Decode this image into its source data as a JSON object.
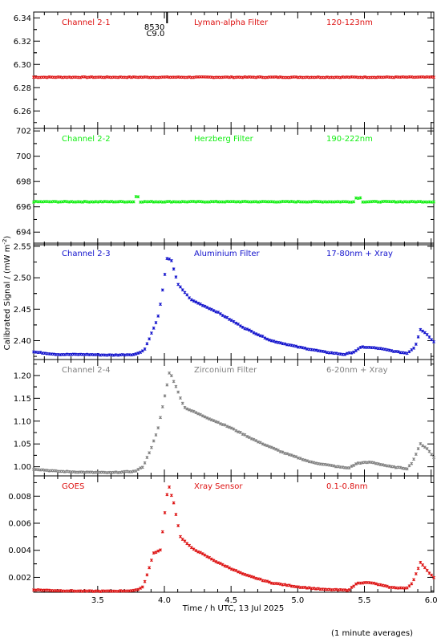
{
  "xlabel": "Time / h UTC, 13 Jul 2025",
  "ylabel": "Calibrated Signal / (mW m",
  "ylabel_sup": "-2",
  "ylabel_close": ")",
  "footnote": "(1 minute averages)",
  "flare_marker": {
    "x": 4.02,
    "label_top": "8530",
    "label_bottom": "C9.0"
  },
  "chart_data": [
    {
      "type": "scatter",
      "channel": "Channel 2-1",
      "filter": "Lyman-alpha Filter",
      "band": "120-123nm",
      "color": "#dd1111",
      "xlim": [
        3.02,
        6.02
      ],
      "ylim": [
        6.245,
        6.345
      ],
      "yticks": [
        "6.26",
        "6.28",
        "6.30",
        "6.32",
        "6.34"
      ],
      "profile": {
        "kind": "flat",
        "level": 6.289
      }
    },
    {
      "type": "scatter",
      "channel": "Channel 2-2",
      "filter": "Herzberg Filter",
      "band": "190-222nm",
      "color": "#11ee11",
      "xlim": [
        3.02,
        6.02
      ],
      "ylim": [
        693,
        702.2
      ],
      "yticks": [
        "694",
        "696",
        "698",
        "700",
        "702"
      ],
      "profile": {
        "kind": "flat",
        "level": 696.4,
        "bumps": [
          [
            3.8,
            696.8
          ],
          [
            5.45,
            696.7
          ]
        ]
      }
    },
    {
      "type": "scatter",
      "channel": "Channel 2-3",
      "filter": "Aluminium Filter",
      "band": "17-80nm + Xray",
      "color": "#1111cc",
      "xlim": [
        3.02,
        6.02
      ],
      "ylim": [
        2.37,
        2.555
      ],
      "yticks": [
        "2.40",
        "2.45",
        "2.50",
        "2.55"
      ],
      "profile": {
        "kind": "flare",
        "points": [
          [
            3.02,
            2.382
          ],
          [
            3.2,
            2.378
          ],
          [
            3.4,
            2.378
          ],
          [
            3.6,
            2.377
          ],
          [
            3.78,
            2.378
          ],
          [
            3.85,
            2.385
          ],
          [
            3.9,
            2.41
          ],
          [
            3.95,
            2.435
          ],
          [
            3.98,
            2.47
          ],
          [
            4.02,
            2.53
          ],
          [
            4.05,
            2.53
          ],
          [
            4.1,
            2.49
          ],
          [
            4.2,
            2.465
          ],
          [
            4.4,
            2.445
          ],
          [
            4.6,
            2.42
          ],
          [
            4.8,
            2.4
          ],
          [
            5.0,
            2.39
          ],
          [
            5.2,
            2.382
          ],
          [
            5.35,
            2.378
          ],
          [
            5.42,
            2.382
          ],
          [
            5.48,
            2.39
          ],
          [
            5.6,
            2.388
          ],
          [
            5.75,
            2.382
          ],
          [
            5.82,
            2.38
          ],
          [
            5.88,
            2.39
          ],
          [
            5.92,
            2.418
          ],
          [
            5.96,
            2.412
          ],
          [
            6.02,
            2.398
          ]
        ]
      }
    },
    {
      "type": "scatter",
      "channel": "Channel 2-4",
      "filter": "Zirconium Filter",
      "band": "6-20nm + Xray",
      "color": "#808080",
      "xlim": [
        3.02,
        6.02
      ],
      "ylim": [
        0.98,
        1.235
      ],
      "yticks": [
        "1.00",
        "1.05",
        "1.10",
        "1.15",
        "1.20"
      ],
      "profile": {
        "kind": "flare",
        "points": [
          [
            3.02,
            0.995
          ],
          [
            3.2,
            0.99
          ],
          [
            3.4,
            0.988
          ],
          [
            3.6,
            0.987
          ],
          [
            3.78,
            0.99
          ],
          [
            3.84,
            1.0
          ],
          [
            3.9,
            1.04
          ],
          [
            3.95,
            1.08
          ],
          [
            4.0,
            1.15
          ],
          [
            4.04,
            1.21
          ],
          [
            4.08,
            1.18
          ],
          [
            4.15,
            1.13
          ],
          [
            4.3,
            1.11
          ],
          [
            4.5,
            1.085
          ],
          [
            4.7,
            1.055
          ],
          [
            4.9,
            1.03
          ],
          [
            5.1,
            1.01
          ],
          [
            5.3,
            1.0
          ],
          [
            5.38,
            0.997
          ],
          [
            5.45,
            1.008
          ],
          [
            5.55,
            1.01
          ],
          [
            5.7,
            1.0
          ],
          [
            5.82,
            0.996
          ],
          [
            5.86,
            1.01
          ],
          [
            5.92,
            1.05
          ],
          [
            5.97,
            1.04
          ],
          [
            6.02,
            1.02
          ]
        ]
      }
    },
    {
      "type": "scatter",
      "channel": "GOES",
      "filter": "Xray Sensor",
      "band": "0.1-0.8nm",
      "color": "#dd1111",
      "xlim": [
        3.02,
        6.02
      ],
      "ylim": [
        0.0009,
        0.0095
      ],
      "yticks": [
        "0.002",
        "0.004",
        "0.006",
        "0.008"
      ],
      "xticks": [
        "3.5",
        "4.0",
        "4.5",
        "5.0",
        "5.5",
        "6.0"
      ],
      "profile": {
        "kind": "flare",
        "points": [
          [
            3.02,
            0.00108
          ],
          [
            3.2,
            0.00102
          ],
          [
            3.4,
            0.00098
          ],
          [
            3.6,
            0.00098
          ],
          [
            3.78,
            0.00102
          ],
          [
            3.84,
            0.0013
          ],
          [
            3.88,
            0.0025
          ],
          [
            3.92,
            0.0038
          ],
          [
            3.97,
            0.004
          ],
          [
            4.0,
            0.0065
          ],
          [
            4.03,
            0.0089
          ],
          [
            4.07,
            0.0075
          ],
          [
            4.12,
            0.005
          ],
          [
            4.2,
            0.0042
          ],
          [
            4.4,
            0.0031
          ],
          [
            4.6,
            0.0022
          ],
          [
            4.8,
            0.0016
          ],
          [
            5.0,
            0.0013
          ],
          [
            5.2,
            0.0011
          ],
          [
            5.38,
            0.00105
          ],
          [
            5.45,
            0.0016
          ],
          [
            5.55,
            0.0016
          ],
          [
            5.7,
            0.00125
          ],
          [
            5.82,
            0.0012
          ],
          [
            5.86,
            0.0016
          ],
          [
            5.92,
            0.0031
          ],
          [
            5.97,
            0.0025
          ],
          [
            6.02,
            0.002
          ]
        ]
      }
    }
  ]
}
